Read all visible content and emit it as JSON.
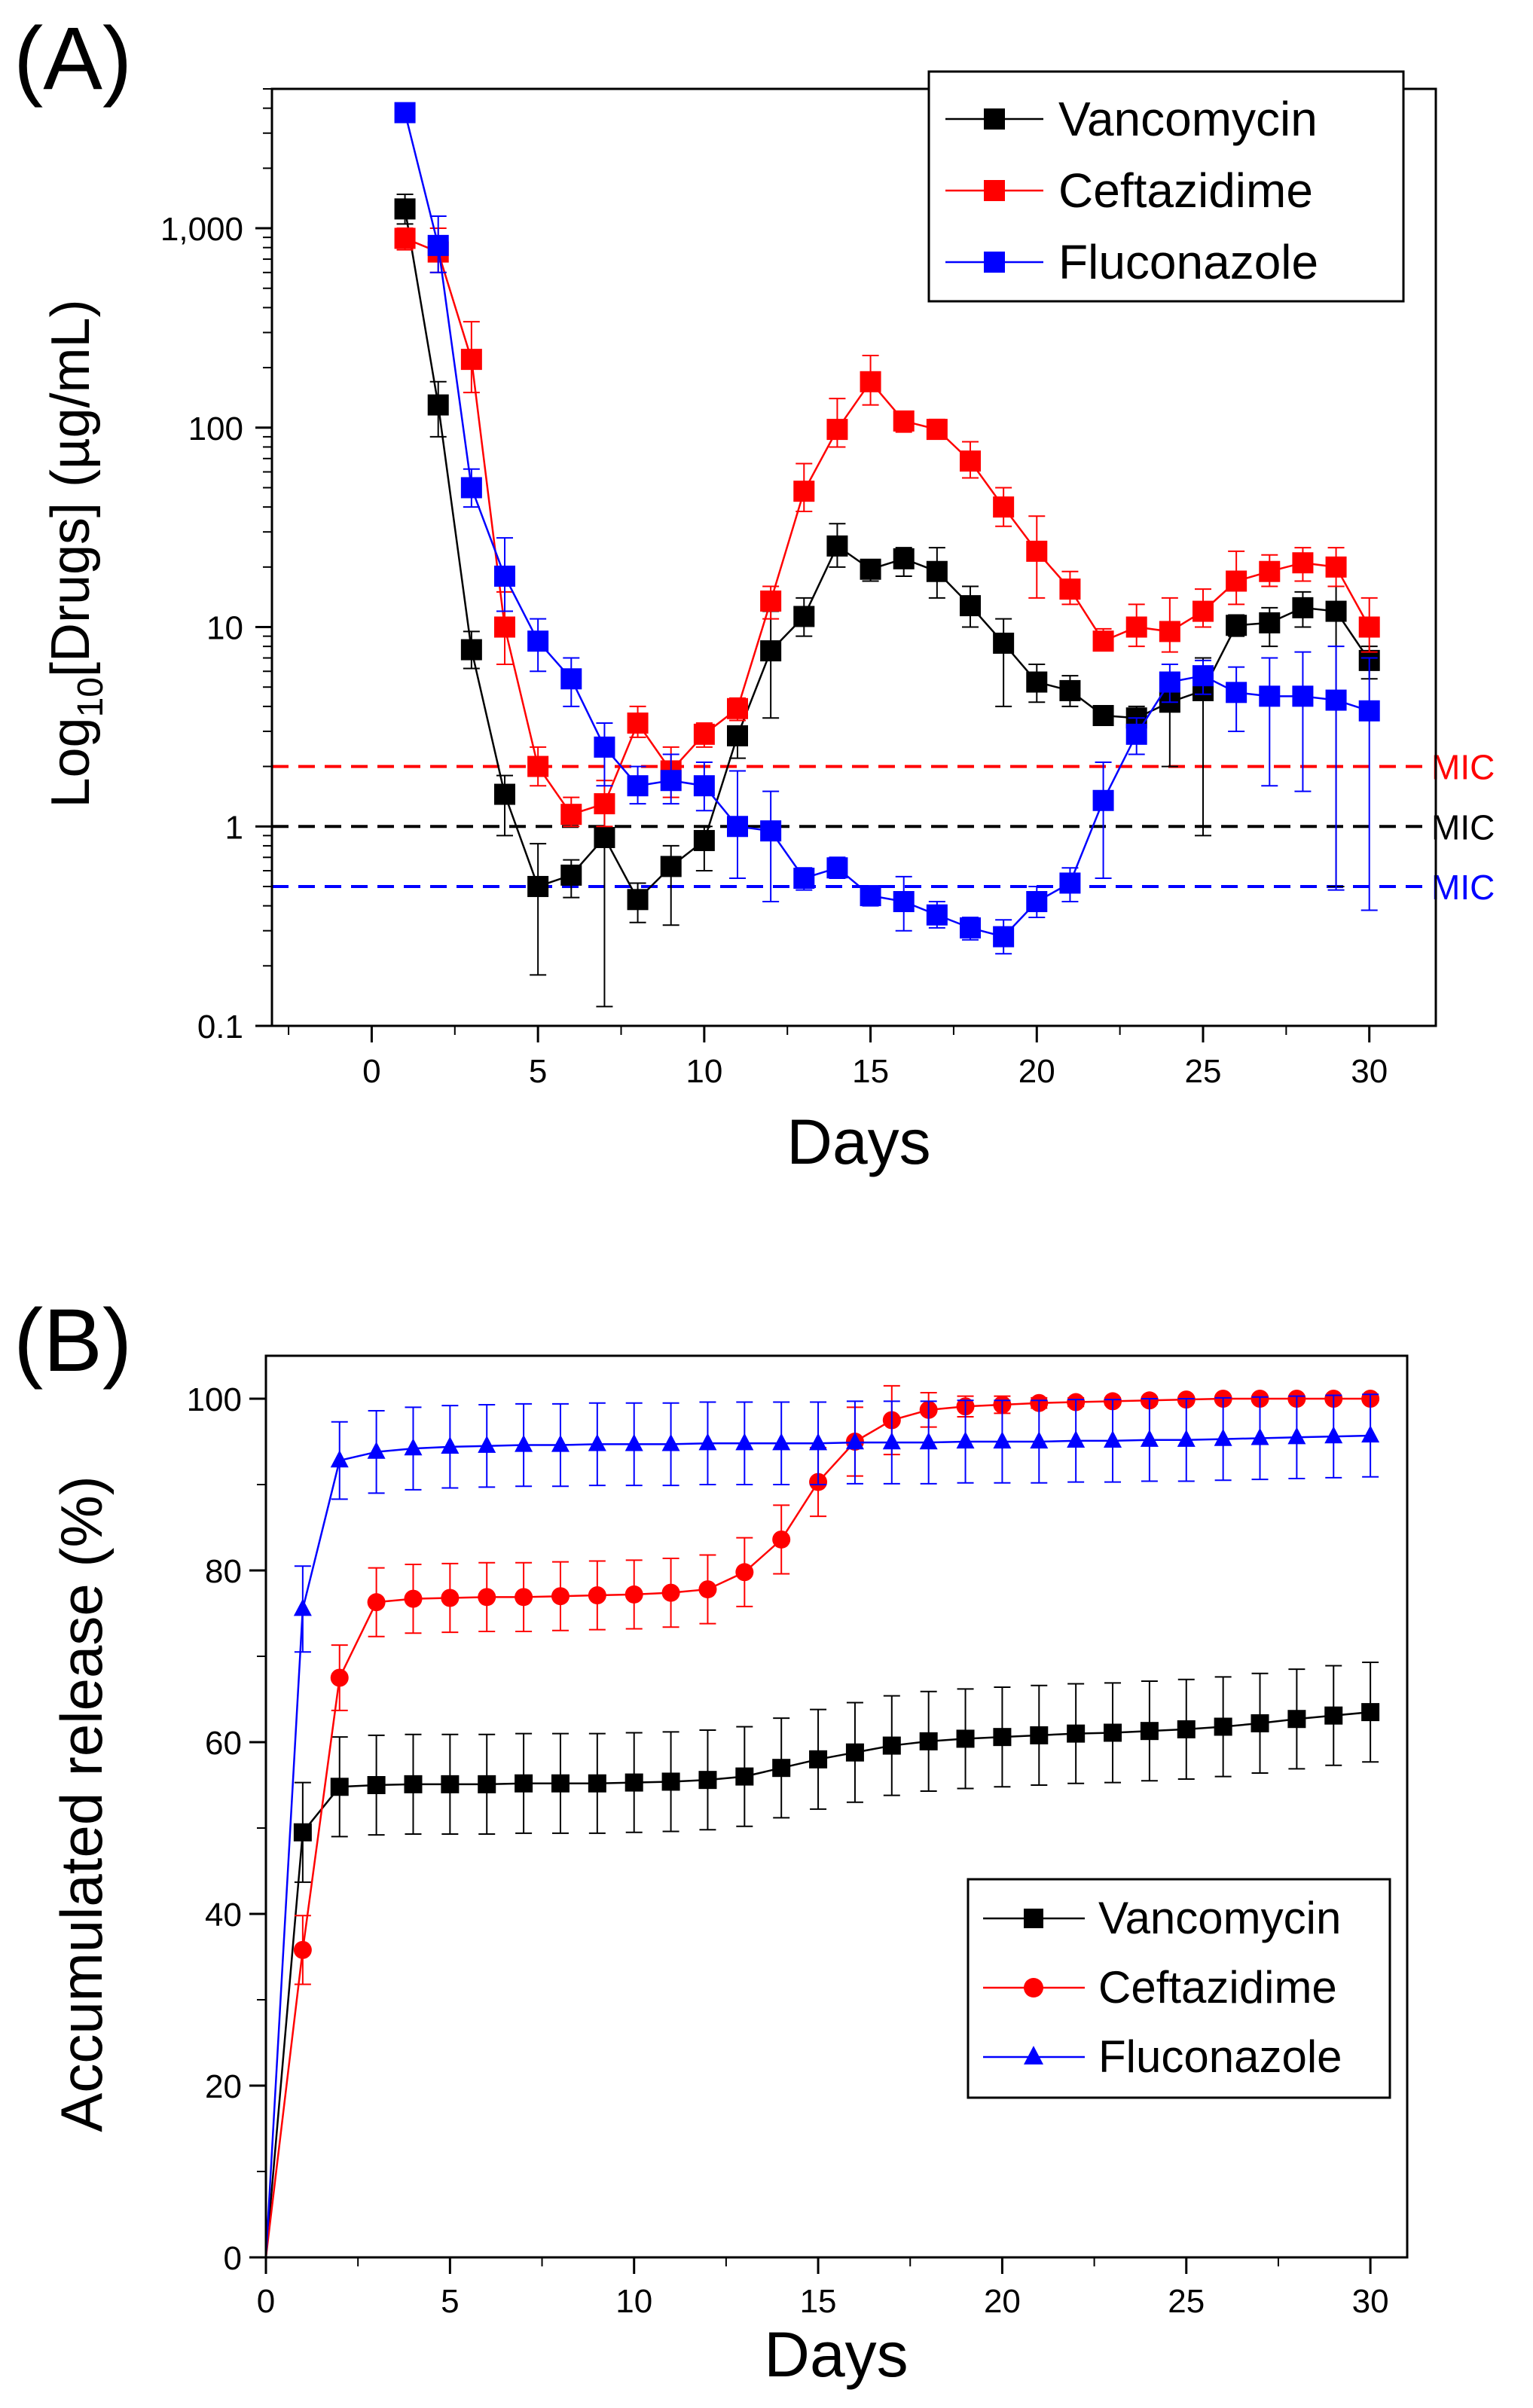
{
  "colors": {
    "vancomycin": "#000000",
    "ceftazidime": "#ff0000",
    "fluconazole": "#0000ff",
    "axis": "#000000"
  },
  "chart_data": [
    {
      "panel_label": "(A)",
      "type": "line",
      "scale": "log",
      "xlabel": "Days",
      "ylabel_main": "Log",
      "ylabel_sub": "10",
      "ylabel_rest": "[Drugs] (µg/mL)",
      "xlim": [
        -3,
        32
      ],
      "ylim": [
        0.1,
        5000
      ],
      "xticks": [
        0,
        5,
        10,
        15,
        20,
        25,
        30
      ],
      "yticks": [
        {
          "value": 0.1,
          "label": "0.1"
        },
        {
          "value": 1,
          "label": "1"
        },
        {
          "value": 10,
          "label": "10"
        },
        {
          "value": 100,
          "label": "100"
        },
        {
          "value": 1000,
          "label": "1,000"
        }
      ],
      "legend": {
        "position": "top-right"
      },
      "mic_lines": [
        {
          "label": "MIC",
          "value": 2,
          "color": "#ff0000"
        },
        {
          "label": "MIC",
          "value": 1,
          "color": "#000000"
        },
        {
          "label": "MIC",
          "value": 0.5,
          "color": "#0000ff"
        }
      ],
      "series": [
        {
          "name": "Vancomycin",
          "color": "#000000",
          "marker": "square",
          "x": [
            1,
            2,
            3,
            4,
            5,
            6,
            7,
            8,
            9,
            10,
            11,
            12,
            13,
            14,
            15,
            16,
            17,
            18,
            19,
            20,
            21,
            22,
            23,
            24,
            25,
            26,
            27,
            28,
            29,
            30
          ],
          "y": [
            1250,
            130,
            7.7,
            1.45,
            0.5,
            0.57,
            0.88,
            0.43,
            0.63,
            0.85,
            2.85,
            7.6,
            11.3,
            25.5,
            19.5,
            22,
            19,
            12.8,
            8.3,
            5.3,
            4.8,
            3.6,
            3.5,
            4.2,
            4.8,
            10.2,
            10.5,
            12.5,
            12.0,
            6.8
          ],
          "err_hi": [
            1480,
            170,
            9.5,
            1.8,
            0.82,
            0.68,
            1.3,
            0.52,
            0.8,
            1.0,
            3.0,
            12,
            14,
            33,
            21,
            25,
            25,
            16,
            11,
            6.5,
            5.7,
            3.9,
            4.0,
            5.0,
            7.0,
            11.5,
            12.5,
            15,
            16,
            8
          ],
          "err_lo": [
            1050,
            90,
            6.2,
            0.9,
            0.18,
            0.44,
            0.125,
            0.33,
            0.32,
            0.6,
            2.2,
            3.5,
            9,
            20,
            17,
            18,
            14,
            10,
            4,
            4.2,
            4,
            3.3,
            3.0,
            2.0,
            0.9,
            9,
            8,
            10,
            0.5,
            5.5
          ]
        },
        {
          "name": "Ceftazidime",
          "color": "#ff0000",
          "marker": "square",
          "x": [
            1,
            2,
            3,
            4,
            5,
            6,
            7,
            8,
            9,
            10,
            11,
            12,
            13,
            14,
            15,
            16,
            17,
            18,
            19,
            20,
            21,
            22,
            23,
            24,
            25,
            26,
            27,
            28,
            29,
            30
          ],
          "y": [
            890,
            760,
            220,
            10,
            2.0,
            1.15,
            1.3,
            3.3,
            1.9,
            2.9,
            3.9,
            13.5,
            48,
            98,
            170,
            108,
            98,
            68,
            40,
            24,
            15.5,
            8.5,
            10,
            9.5,
            12,
            17,
            19,
            21,
            20,
            10
          ],
          "err_hi": [
            1000,
            1000,
            340,
            15,
            2.5,
            1.4,
            1.7,
            4.0,
            2.5,
            3.3,
            4.4,
            16,
            66,
            140,
            230,
            120,
            110,
            85,
            50,
            36,
            19,
            9.8,
            13,
            14,
            15.5,
            24,
            23,
            25,
            25,
            14
          ],
          "err_lo": [
            780,
            600,
            150,
            6.5,
            1.6,
            1.0,
            1.0,
            2.8,
            1.4,
            2.5,
            3.4,
            11,
            38,
            80,
            130,
            95,
            88,
            56,
            32,
            14,
            13,
            7.7,
            8,
            7.5,
            10,
            13,
            16,
            17,
            16,
            7.5
          ]
        },
        {
          "name": "Fluconazole",
          "color": "#0000ff",
          "marker": "square",
          "x": [
            1,
            2,
            3,
            4,
            5,
            6,
            7,
            8,
            9,
            10,
            11,
            12,
            13,
            14,
            15,
            16,
            17,
            18,
            19,
            20,
            21,
            22,
            23,
            24,
            25,
            26,
            27,
            28,
            29,
            30
          ],
          "y": [
            3800,
            820,
            50,
            18,
            8.5,
            5.5,
            2.5,
            1.6,
            1.7,
            1.6,
            1.0,
            0.95,
            0.55,
            0.62,
            0.45,
            0.42,
            0.36,
            0.31,
            0.28,
            0.42,
            0.52,
            1.35,
            2.9,
            5.3,
            5.7,
            4.7,
            4.5,
            4.5,
            4.3,
            3.8
          ],
          "err_hi": [
            3800,
            1150,
            62,
            28,
            11,
            7,
            3.3,
            2.0,
            2.3,
            2.1,
            1.9,
            1.5,
            0.62,
            0.7,
            0.5,
            0.56,
            0.42,
            0.35,
            0.34,
            0.5,
            0.62,
            2.1,
            3.5,
            6.5,
            6.8,
            6.3,
            7.0,
            7.5,
            8.0,
            7.0
          ],
          "err_lo": [
            3800,
            600,
            40,
            12,
            6,
            4,
            1.6,
            1.3,
            1.3,
            1.2,
            0.55,
            0.42,
            0.48,
            0.55,
            0.4,
            0.3,
            0.31,
            0.27,
            0.23,
            0.35,
            0.42,
            0.55,
            2.3,
            4.2,
            4.6,
            3.0,
            1.6,
            1.5,
            0.48,
            0.38
          ]
        }
      ]
    },
    {
      "panel_label": "(B)",
      "type": "line",
      "scale": "linear",
      "xlabel": "Days",
      "ylabel": "Accumulated release (%)",
      "xlim": [
        0,
        31
      ],
      "ylim": [
        0,
        105
      ],
      "xticks": [
        0,
        5,
        10,
        15,
        20,
        25,
        30
      ],
      "yticks": [
        {
          "value": 0,
          "label": "0"
        },
        {
          "value": 20,
          "label": "20"
        },
        {
          "value": 40,
          "label": "40"
        },
        {
          "value": 60,
          "label": "60"
        },
        {
          "value": 80,
          "label": "80"
        },
        {
          "value": 100,
          "label": "100"
        }
      ],
      "legend": {
        "position": "bottom-right"
      },
      "series": [
        {
          "name": "Vancomycin",
          "color": "#000000",
          "marker": "square",
          "x": [
            0,
            1,
            2,
            3,
            4,
            5,
            6,
            7,
            8,
            9,
            10,
            11,
            12,
            13,
            14,
            15,
            16,
            17,
            18,
            19,
            20,
            21,
            22,
            23,
            24,
            25,
            26,
            27,
            28,
            29,
            30
          ],
          "y": [
            0,
            49.5,
            54.8,
            55,
            55.1,
            55.1,
            55.1,
            55.2,
            55.2,
            55.2,
            55.3,
            55.4,
            55.6,
            56,
            57,
            58,
            58.8,
            59.6,
            60.1,
            60.4,
            60.6,
            60.8,
            61,
            61.1,
            61.3,
            61.5,
            61.8,
            62.2,
            62.7,
            63.1,
            63.5
          ],
          "err": [
            0,
            5.8,
            5.8,
            5.8,
            5.8,
            5.8,
            5.8,
            5.8,
            5.8,
            5.8,
            5.8,
            5.8,
            5.8,
            5.8,
            5.8,
            5.8,
            5.8,
            5.8,
            5.8,
            5.8,
            5.8,
            5.8,
            5.8,
            5.8,
            5.8,
            5.8,
            5.8,
            5.8,
            5.8,
            5.8,
            5.8
          ]
        },
        {
          "name": "Ceftazidime",
          "color": "#ff0000",
          "marker": "circle",
          "x": [
            0,
            1,
            2,
            3,
            4,
            5,
            6,
            7,
            8,
            9,
            10,
            11,
            12,
            13,
            14,
            15,
            16,
            17,
            18,
            19,
            20,
            21,
            22,
            23,
            24,
            25,
            26,
            27,
            28,
            29,
            30
          ],
          "y": [
            0,
            35.8,
            67.5,
            76.3,
            76.7,
            76.8,
            76.9,
            76.9,
            77,
            77.1,
            77.2,
            77.4,
            77.8,
            79.8,
            83.6,
            90.3,
            95,
            97.5,
            98.7,
            99.1,
            99.3,
            99.5,
            99.6,
            99.7,
            99.8,
            99.9,
            100,
            100,
            100,
            100,
            100
          ],
          "err": [
            0,
            4,
            3.8,
            4,
            4,
            4,
            4,
            4,
            4,
            4,
            4,
            4,
            4,
            4,
            4,
            4,
            4,
            4,
            2,
            1.2,
            1,
            0.6,
            0.5,
            0.4,
            0.4,
            0.3,
            0.3,
            0.3,
            0.3,
            0.3,
            0.3
          ]
        },
        {
          "name": "Fluconazole",
          "color": "#0000ff",
          "marker": "triangle",
          "x": [
            0,
            1,
            2,
            3,
            4,
            5,
            6,
            7,
            8,
            9,
            10,
            11,
            12,
            13,
            14,
            15,
            16,
            17,
            18,
            19,
            20,
            21,
            22,
            23,
            24,
            25,
            26,
            27,
            28,
            29,
            30
          ],
          "y": [
            0,
            75.5,
            92.8,
            93.8,
            94.2,
            94.4,
            94.5,
            94.6,
            94.6,
            94.7,
            94.7,
            94.7,
            94.8,
            94.8,
            94.8,
            94.8,
            94.9,
            94.9,
            94.9,
            95,
            95,
            95,
            95.1,
            95.1,
            95.2,
            95.2,
            95.3,
            95.4,
            95.5,
            95.6,
            95.7
          ],
          "err": [
            0,
            5,
            4.5,
            4.8,
            4.8,
            4.8,
            4.8,
            4.8,
            4.8,
            4.8,
            4.8,
            4.8,
            4.8,
            4.8,
            4.8,
            4.8,
            4.8,
            4.8,
            4.8,
            4.8,
            4.8,
            4.8,
            4.8,
            4.8,
            4.8,
            4.8,
            4.8,
            4.8,
            4.8,
            4.8,
            4.8
          ]
        }
      ]
    }
  ]
}
